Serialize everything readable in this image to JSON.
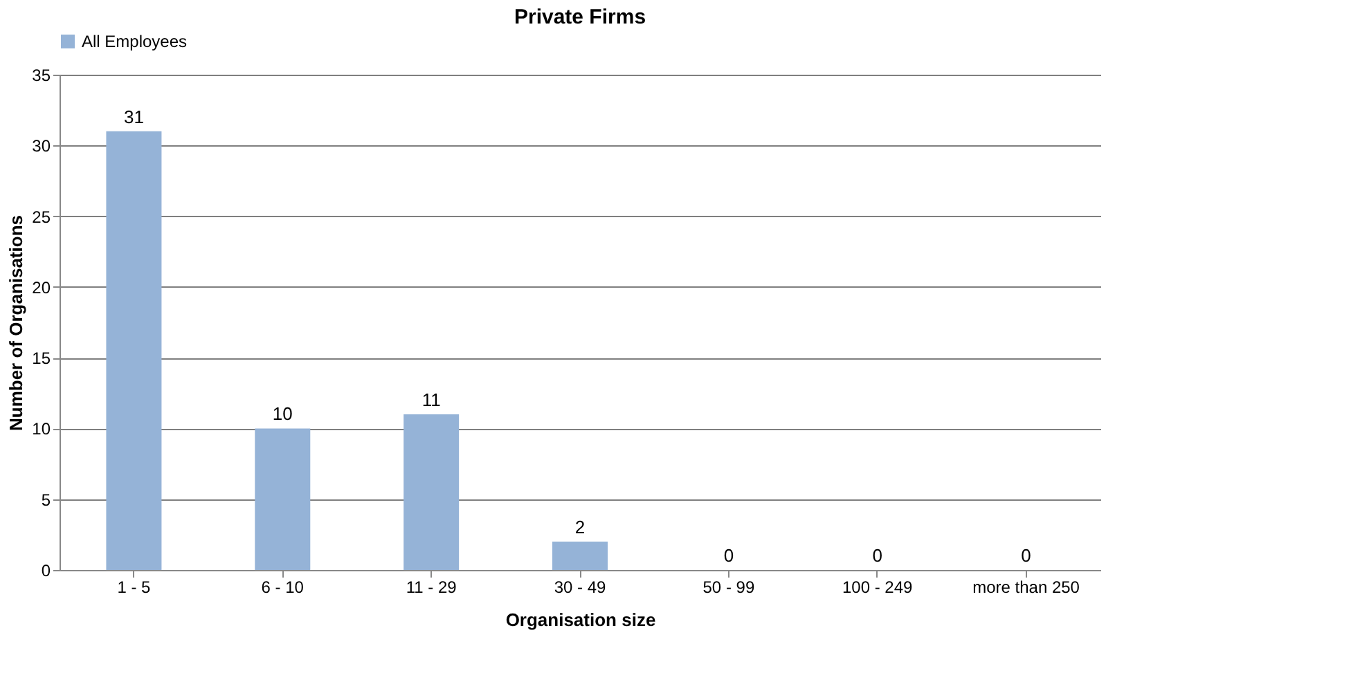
{
  "chart_data": {
    "type": "bar",
    "title": "Private Firms",
    "xlabel": "Organisation size",
    "ylabel": "Number of Organisations",
    "categories": [
      "1 - 5",
      "6 - 10",
      "11 - 29",
      "30 - 49",
      "50 - 99",
      "100 - 249",
      "more than 250"
    ],
    "series": [
      {
        "name": "All Employees",
        "color": "#95b3d7",
        "values": [
          31,
          10,
          11,
          2,
          0,
          0,
          0
        ]
      }
    ],
    "ylim": [
      0,
      35
    ],
    "yticks": [
      0,
      5,
      10,
      15,
      20,
      25,
      30,
      35
    ],
    "grid": "y",
    "legend": "top",
    "data_labels": true
  }
}
